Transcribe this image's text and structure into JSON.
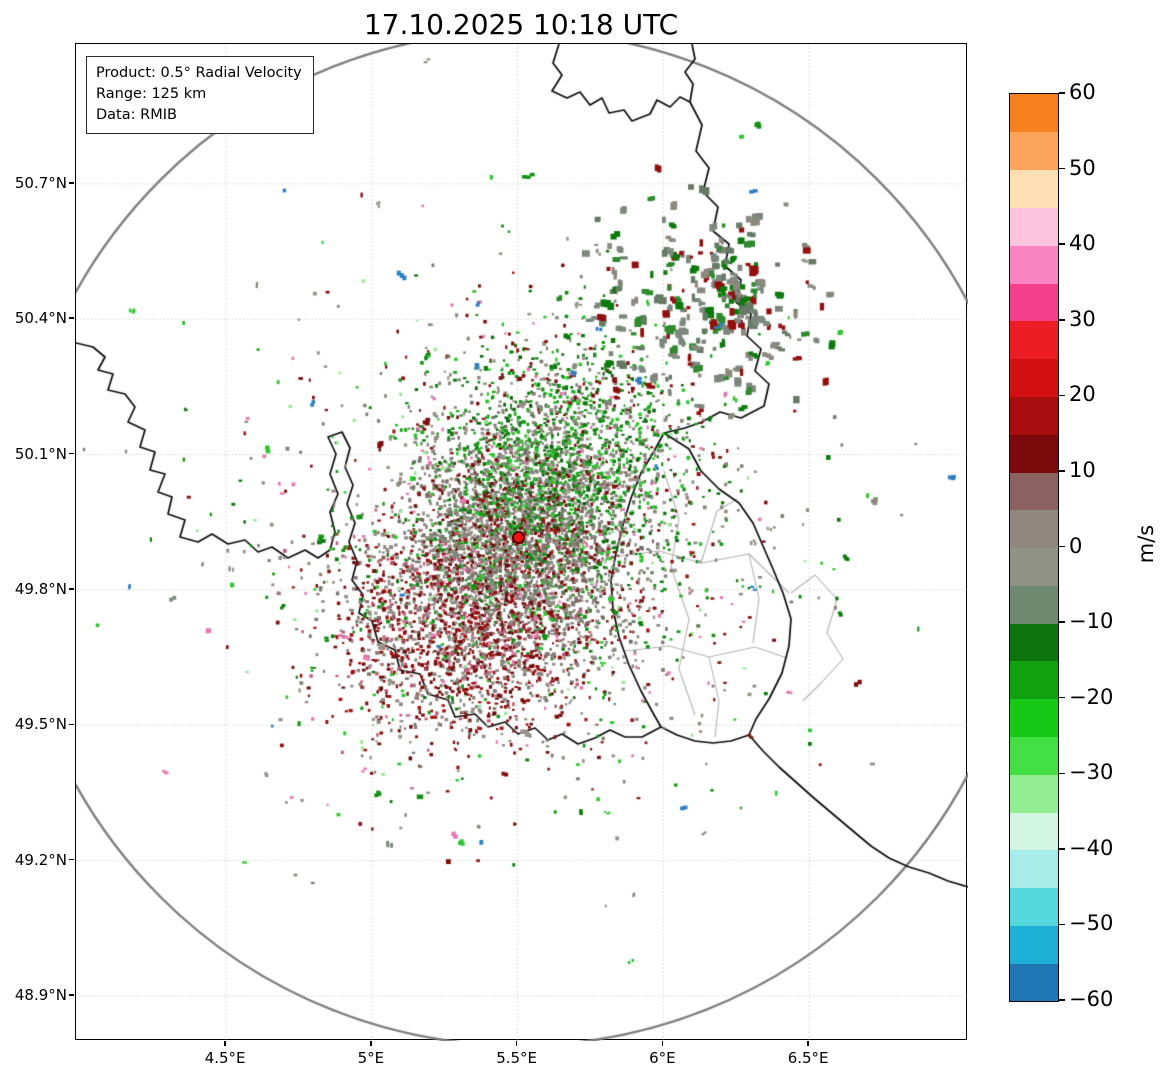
{
  "title": "17.10.2025 10:18 UTC",
  "info_box": {
    "lines": [
      "Product: 0.5° Radial Velocity",
      "Range: 125 km",
      "Data: RMIB"
    ]
  },
  "chart_data": {
    "type": "scatter",
    "title": "17.10.2025 10:18 UTC",
    "annotations": [
      "Product: 0.5° Radial Velocity",
      "Range: 125 km",
      "Data: RMIB"
    ],
    "grid": true,
    "x_axis": {
      "tick_labels": [
        "4.5°E",
        "5°E",
        "5.5°E",
        "6°E",
        "6.5°E"
      ],
      "tick_values": [
        4.5,
        5.0,
        5.5,
        6.0,
        6.5
      ],
      "range": [
        3.985,
        7.045
      ]
    },
    "y_axis": {
      "tick_labels": [
        "50.7°N",
        "50.4°N",
        "50.1°N",
        "49.8°N",
        "49.5°N",
        "49.2°N",
        "48.9°N"
      ],
      "tick_values": [
        50.7,
        50.4,
        50.1,
        49.8,
        49.5,
        49.2,
        48.9
      ],
      "range": [
        48.8,
        51.01
      ]
    },
    "colorbar": {
      "label": "m/s",
      "range": [
        -60,
        60
      ],
      "tick_labels": [
        "60",
        "50",
        "40",
        "30",
        "20",
        "10",
        "0",
        "−10",
        "−20",
        "−30",
        "−40",
        "−50",
        "−60"
      ],
      "tick_values": [
        60,
        50,
        40,
        30,
        20,
        10,
        0,
        -10,
        -20,
        -30,
        -40,
        -50,
        -60
      ],
      "segments": [
        {
          "from": -60,
          "to": -55,
          "color": "#2176b5"
        },
        {
          "from": -55,
          "to": -50,
          "color": "#1fb0d8"
        },
        {
          "from": -50,
          "to": -45,
          "color": "#55d8dc"
        },
        {
          "from": -45,
          "to": -40,
          "color": "#a8ecea"
        },
        {
          "from": -40,
          "to": -35,
          "color": "#d2f5e4"
        },
        {
          "from": -35,
          "to": -30,
          "color": "#93ee93"
        },
        {
          "from": -30,
          "to": -25,
          "color": "#44df44"
        },
        {
          "from": -25,
          "to": -20,
          "color": "#17c917"
        },
        {
          "from": -20,
          "to": -15,
          "color": "#10a010"
        },
        {
          "from": -15,
          "to": -10,
          "color": "#0e750e"
        },
        {
          "from": -10,
          "to": -5,
          "color": "#6e8a6e"
        },
        {
          "from": -5,
          "to": 0,
          "color": "#8f9285"
        },
        {
          "from": 0,
          "to": 5,
          "color": "#908780"
        },
        {
          "from": 5,
          "to": 10,
          "color": "#8a6260"
        },
        {
          "from": 10,
          "to": 15,
          "color": "#7c0a0c"
        },
        {
          "from": 15,
          "to": 20,
          "color": "#a80d10"
        },
        {
          "from": 20,
          "to": 25,
          "color": "#d40f14"
        },
        {
          "from": 25,
          "to": 30,
          "color": "#ee1c24"
        },
        {
          "from": 30,
          "to": 35,
          "color": "#f5408c"
        },
        {
          "from": 35,
          "to": 40,
          "color": "#f885c2"
        },
        {
          "from": 40,
          "to": 45,
          "color": "#fcc3dc"
        },
        {
          "from": 45,
          "to": 50,
          "color": "#fddfb3"
        },
        {
          "from": 50,
          "to": 55,
          "color": "#fba45b"
        },
        {
          "from": 55,
          "to": 60,
          "color": "#f5801d"
        }
      ]
    },
    "radar_site": {
      "lon": 5.505,
      "lat": 49.914,
      "marker_color": "#ee1410",
      "marker_edge": "#5a0000"
    },
    "range_ring": {
      "radius_km": 125,
      "color": "#7f7f7f"
    },
    "map_features": {
      "country_border_color": "#0a0a0a",
      "district_border_color": "#b3b3b3",
      "gridline_color": "#c6c6c6"
    },
    "seed": 11,
    "point_clusters": [
      {
        "name": "core-gray",
        "center": [
          5.505,
          49.9
        ],
        "spread": [
          0.65,
          0.42
        ],
        "count": 2600,
        "size": [
          2,
          4
        ],
        "clumpy": false,
        "colors": [
          "#8d8981",
          "#8d8981",
          "#8d8981",
          "#7e7a74",
          "#7e7a74",
          "#999489",
          "#6e6a65",
          "#8a5a58",
          "#5f7a5f",
          "#7c0d0d",
          "#129212"
        ]
      },
      {
        "name": "green-north",
        "center": [
          5.64,
          50.09
        ],
        "spread": [
          0.71,
          0.42
        ],
        "count": 1600,
        "size": [
          2,
          4
        ],
        "clumpy": false,
        "colors": [
          "#129212",
          "#129212",
          "#0c7a0c",
          "#1fae1f",
          "#2cc72c",
          "#0a620a",
          "#8d8981",
          "#8d8981",
          "#999489",
          "#7c0d0d"
        ]
      },
      {
        "name": "red-southwest",
        "center": [
          5.29,
          49.72
        ],
        "spread": [
          0.77,
          0.42
        ],
        "count": 1600,
        "size": [
          2,
          4
        ],
        "clumpy": false,
        "colors": [
          "#7c0d0d",
          "#7c0d0d",
          "#930f0f",
          "#650909",
          "#a51212",
          "#8d8981",
          "#8d8981",
          "#7e7a74",
          "#c05a78"
        ]
      },
      {
        "name": "halo-mixed",
        "center": [
          5.5,
          49.9
        ],
        "spread": [
          1.54,
          0.92
        ],
        "count": 1250,
        "size": [
          2,
          4
        ],
        "clumpy": false,
        "colors": [
          "#8d8981",
          "#8d8981",
          "#7e7a74",
          "#999489",
          "#129212",
          "#0c7a0c",
          "#7c0d0d",
          "#930f0f",
          "#2cc72c",
          "#e878b0",
          "#9ae89a"
        ]
      },
      {
        "name": "northeast-clumps",
        "center": [
          6.13,
          50.44
        ],
        "spread": [
          0.71,
          0.38
        ],
        "count": 240,
        "size": [
          3,
          8
        ],
        "clumpy": true,
        "colors": [
          "#7d877d",
          "#7d877d",
          "#667a66",
          "#8d8981",
          "#0c7a0c",
          "#2f8a2f",
          "#930f0f"
        ]
      },
      {
        "name": "outliers",
        "center": [
          5.5,
          49.9
        ],
        "spread": [
          2.37,
          1.38
        ],
        "count": 180,
        "size": [
          2,
          5
        ],
        "clumpy": true,
        "colors": [
          "#8d8981",
          "#7d877d",
          "#129212",
          "#7c0d0d",
          "#2cc72c",
          "#e878b0",
          "#2f7fc1",
          "#999489",
          "#0c7a0c"
        ]
      }
    ]
  }
}
